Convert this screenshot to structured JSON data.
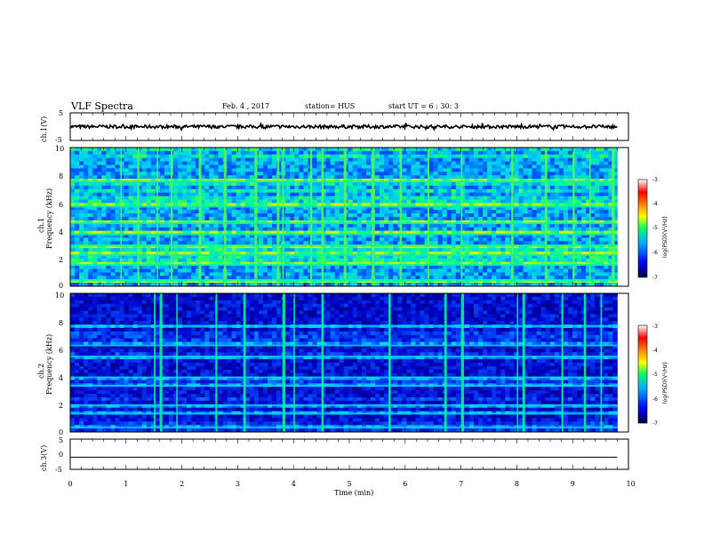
{
  "header": {
    "title": "VLF Spectra",
    "date": "Feb. 4 , 2017",
    "station": "station= HUS",
    "start": "start UT = 6 : 30: 3"
  },
  "chart_data": [
    {
      "type": "line",
      "name": "ch1-waveform",
      "ylabel": "ch.1(V)",
      "ylim": [
        -5,
        5
      ],
      "ytick_labels": [
        "5",
        "-5"
      ],
      "xlim": [
        0,
        10
      ],
      "level": 0,
      "noise": "high"
    },
    {
      "type": "heatmap",
      "name": "ch1-spectrogram",
      "ylabel": [
        "ch.1",
        "Frequency (kHz)"
      ],
      "ylim": [
        0,
        10
      ],
      "ytick_labels": [
        "0",
        "2",
        "4",
        "6",
        "8",
        "10"
      ],
      "xlim": [
        0,
        9.8
      ],
      "colorbar": {
        "label": "log(PSD)(V²/Hz)",
        "range": [
          -7,
          -3
        ],
        "tick_labels": [
          "-3",
          "-4",
          "-5",
          "-6",
          "-7"
        ]
      },
      "bright_bands_khz": [
        0.5,
        1.6,
        2.3,
        3.0,
        3.8,
        4.6,
        5.8,
        7.6
      ],
      "bright_times_min": [
        0.9,
        1.2,
        1.55,
        1.8,
        2.3,
        2.75,
        3.3,
        3.7,
        3.8,
        4.3,
        4.5,
        4.9,
        5.4,
        5.9,
        6.4,
        7.0,
        7.9,
        8.5,
        9.0,
        9.3,
        9.7
      ]
    },
    {
      "type": "heatmap",
      "name": "ch2-spectrogram",
      "ylabel": [
        "ch.2",
        "Frequency (kHz)"
      ],
      "ylim": [
        0,
        10
      ],
      "ytick_labels": [
        "0",
        "2",
        "4",
        "6",
        "8",
        "10"
      ],
      "xlim": [
        0,
        9.8
      ],
      "colorbar": {
        "label": "log(PSD)(V²/Hz)",
        "range": [
          -7,
          -3
        ],
        "tick_labels": [
          "-3",
          "-4",
          "-5",
          "-6",
          "-7"
        ]
      },
      "bright_bands_khz": [
        0.4,
        1.4,
        2.0,
        3.4,
        4.0,
        5.5,
        6.3,
        7.7
      ],
      "bright_times_min": [
        1.5,
        1.6,
        1.9,
        2.6,
        3.1,
        3.8,
        4.0,
        4.5,
        5.7,
        6.7,
        7.0,
        8.0,
        8.1,
        8.8,
        9.2,
        9.5
      ]
    },
    {
      "type": "line",
      "name": "ch3-waveform",
      "ylabel": "ch.3(V)",
      "ylim": [
        -5,
        5
      ],
      "ytick_labels": [
        "5",
        "0",
        "-5"
      ],
      "xlim": [
        0,
        10
      ],
      "level": -1
    }
  ],
  "xaxis": {
    "label": "Time (min)",
    "tick_labels": [
      "0",
      "1",
      "2",
      "3",
      "4",
      "5",
      "6",
      "7",
      "8",
      "9",
      "10"
    ],
    "range": [
      0,
      10
    ]
  }
}
